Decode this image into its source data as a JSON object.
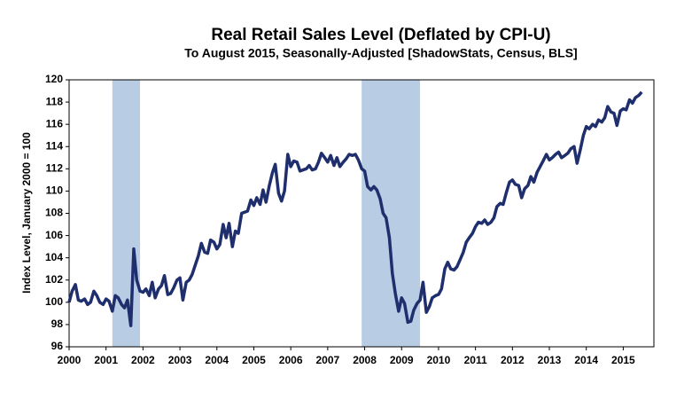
{
  "chart_data": {
    "type": "line",
    "title": "Real Retail Sales Level (Deflated by CPI-U)",
    "subtitle": "To August 2015, Seasonally-Adjusted [ShadowStats, Census, BLS]",
    "ylabel": "Index Level, January 2000 = 100",
    "xlim": [
      2000,
      2015.83
    ],
    "xticks": [
      2000,
      2001,
      2002,
      2003,
      2004,
      2005,
      2006,
      2007,
      2008,
      2009,
      2010,
      2011,
      2012,
      2013,
      2014,
      2015
    ],
    "ylim": [
      96,
      120
    ],
    "yticks": [
      96,
      98,
      100,
      102,
      104,
      106,
      108,
      110,
      112,
      114,
      116,
      118,
      120
    ],
    "shaded_ranges": [
      [
        2001.17,
        2001.92
      ],
      [
        2007.92,
        2009.5
      ]
    ],
    "shade_color": "#b8cce4",
    "series": [
      {
        "color": "#1f2f6e",
        "x": [
          2000.0,
          2000.08,
          2000.17,
          2000.25,
          2000.33,
          2000.42,
          2000.5,
          2000.58,
          2000.67,
          2000.75,
          2000.83,
          2000.92,
          2001.0,
          2001.08,
          2001.17,
          2001.25,
          2001.33,
          2001.42,
          2001.5,
          2001.58,
          2001.67,
          2001.75,
          2001.83,
          2001.92,
          2002.0,
          2002.08,
          2002.17,
          2002.25,
          2002.33,
          2002.42,
          2002.5,
          2002.58,
          2002.67,
          2002.75,
          2002.83,
          2002.92,
          2003.0,
          2003.08,
          2003.17,
          2003.25,
          2003.33,
          2003.42,
          2003.5,
          2003.58,
          2003.67,
          2003.75,
          2003.83,
          2003.92,
          2004.0,
          2004.08,
          2004.17,
          2004.25,
          2004.33,
          2004.42,
          2004.5,
          2004.58,
          2004.67,
          2004.75,
          2004.83,
          2004.92,
          2005.0,
          2005.08,
          2005.17,
          2005.25,
          2005.33,
          2005.42,
          2005.5,
          2005.58,
          2005.67,
          2005.75,
          2005.83,
          2005.92,
          2006.0,
          2006.08,
          2006.17,
          2006.25,
          2006.33,
          2006.42,
          2006.5,
          2006.58,
          2006.67,
          2006.75,
          2006.83,
          2006.92,
          2007.0,
          2007.08,
          2007.17,
          2007.25,
          2007.33,
          2007.42,
          2007.5,
          2007.58,
          2007.67,
          2007.75,
          2007.83,
          2007.92,
          2008.0,
          2008.08,
          2008.17,
          2008.25,
          2008.33,
          2008.42,
          2008.5,
          2008.58,
          2008.67,
          2008.75,
          2008.83,
          2008.92,
          2009.0,
          2009.08,
          2009.17,
          2009.25,
          2009.33,
          2009.42,
          2009.5,
          2009.58,
          2009.67,
          2009.75,
          2009.83,
          2009.92,
          2010.0,
          2010.08,
          2010.17,
          2010.25,
          2010.33,
          2010.42,
          2010.5,
          2010.58,
          2010.67,
          2010.75,
          2010.83,
          2010.92,
          2011.0,
          2011.08,
          2011.17,
          2011.25,
          2011.33,
          2011.42,
          2011.5,
          2011.58,
          2011.67,
          2011.75,
          2011.83,
          2011.92,
          2012.0,
          2012.08,
          2012.17,
          2012.25,
          2012.33,
          2012.42,
          2012.5,
          2012.58,
          2012.67,
          2012.75,
          2012.83,
          2012.92,
          2013.0,
          2013.08,
          2013.17,
          2013.25,
          2013.33,
          2013.42,
          2013.5,
          2013.58,
          2013.67,
          2013.75,
          2013.83,
          2013.92,
          2014.0,
          2014.08,
          2014.17,
          2014.25,
          2014.33,
          2014.42,
          2014.5,
          2014.58,
          2014.67,
          2014.75,
          2014.83,
          2014.92,
          2015.0,
          2015.08,
          2015.17,
          2015.25,
          2015.33,
          2015.42,
          2015.5
        ],
        "values": [
          100.0,
          101.0,
          101.6,
          100.2,
          100.1,
          100.3,
          99.8,
          100.0,
          101.0,
          100.6,
          100.0,
          99.8,
          100.3,
          100.1,
          99.2,
          100.6,
          100.4,
          99.8,
          99.5,
          100.2,
          97.9,
          104.8,
          102.0,
          101.0,
          100.9,
          101.2,
          100.6,
          101.8,
          100.4,
          101.2,
          101.5,
          102.4,
          100.7,
          100.8,
          101.3,
          102.0,
          102.2,
          100.2,
          101.8,
          102.0,
          102.5,
          103.4,
          104.2,
          105.3,
          104.5,
          104.4,
          105.6,
          105.4,
          104.8,
          105.2,
          107.0,
          105.8,
          107.1,
          105.0,
          106.4,
          106.2,
          108.0,
          108.1,
          108.2,
          109.2,
          108.7,
          109.4,
          108.8,
          110.1,
          109.0,
          110.5,
          111.6,
          112.4,
          109.8,
          109.1,
          110.0,
          113.3,
          112.2,
          112.7,
          112.6,
          111.8,
          111.9,
          112.0,
          112.3,
          111.9,
          112.0,
          112.6,
          113.4,
          113.0,
          112.6,
          113.2,
          112.3,
          113.0,
          112.2,
          112.6,
          112.9,
          113.3,
          113.2,
          113.3,
          112.8,
          112.0,
          111.8,
          110.4,
          110.1,
          110.4,
          110.1,
          109.3,
          108.0,
          107.6,
          105.8,
          102.6,
          100.8,
          99.2,
          100.4,
          99.9,
          98.2,
          98.3,
          99.3,
          99.9,
          100.2,
          101.8,
          99.1,
          99.6,
          100.4,
          100.6,
          100.7,
          101.2,
          103.0,
          103.6,
          103.0,
          102.9,
          103.2,
          103.8,
          104.5,
          105.4,
          105.8,
          106.2,
          106.8,
          107.2,
          107.1,
          107.4,
          107.0,
          107.2,
          107.6,
          108.6,
          108.9,
          108.8,
          109.8,
          110.8,
          111.0,
          110.6,
          110.5,
          109.4,
          110.2,
          110.5,
          111.3,
          110.8,
          111.7,
          112.2,
          112.7,
          113.3,
          112.8,
          113.0,
          113.3,
          113.5,
          113.0,
          113.2,
          113.4,
          113.8,
          114.0,
          112.5,
          113.6,
          115.0,
          115.8,
          115.6,
          116.0,
          115.8,
          116.4,
          116.2,
          116.6,
          117.6,
          117.1,
          117.0,
          115.9,
          117.2,
          117.4,
          117.3,
          118.2,
          117.9,
          118.4,
          118.6,
          118.9
        ]
      }
    ]
  }
}
